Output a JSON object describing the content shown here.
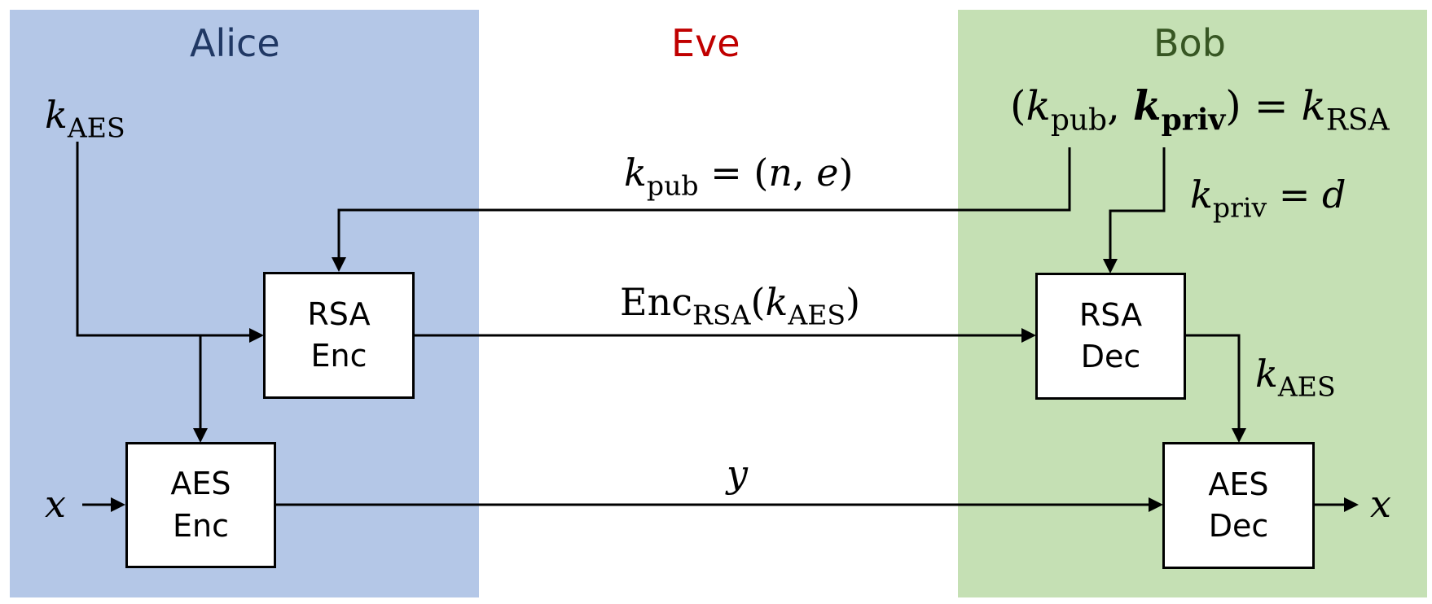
{
  "colors": {
    "alice_bg": "#b4c7e7",
    "bob_bg": "#c5e0b4",
    "alice_text": "#203864",
    "eve_text": "#c00000",
    "bob_text": "#375623"
  },
  "parties": {
    "alice": "Alice",
    "eve": "Eve",
    "bob": "Bob"
  },
  "blocks": {
    "rsa_enc": [
      "RSA",
      "Enc"
    ],
    "aes_enc": [
      "AES",
      "Enc"
    ],
    "rsa_dec": [
      "RSA",
      "Dec"
    ],
    "aes_dec": [
      "AES",
      "Dec"
    ]
  },
  "symbols": {
    "k": "k",
    "aes": "AES",
    "rsa": "RSA",
    "pub": "pub",
    "priv": "priv",
    "x": "x",
    "y": "y",
    "n": "n",
    "e": "e",
    "d": "d",
    "enc": "Enc"
  }
}
